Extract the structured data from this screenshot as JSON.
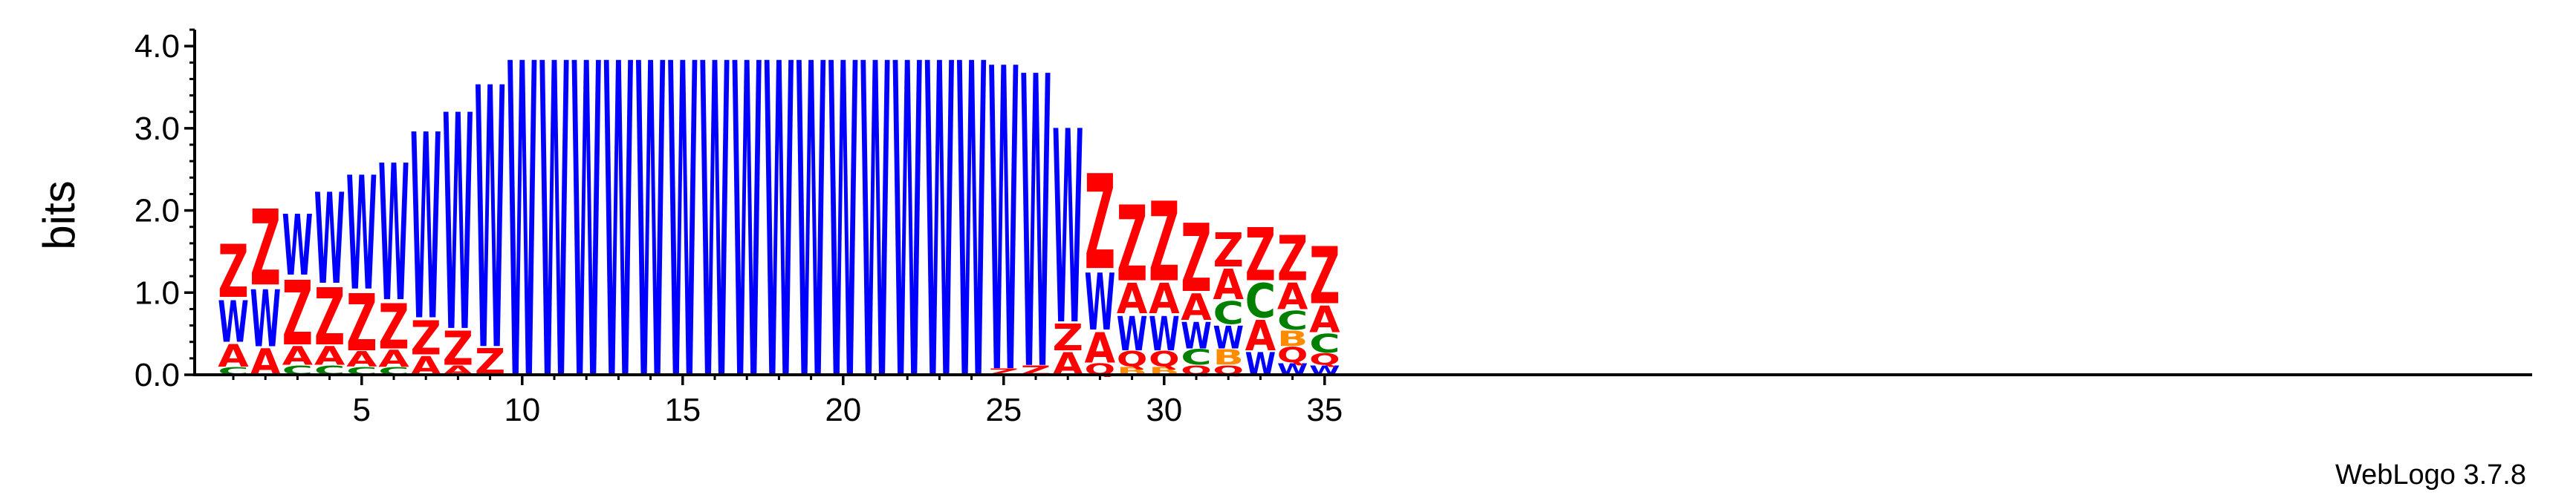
{
  "chart_data": {
    "type": "sequence_logo",
    "ylabel": "bits",
    "ylim": [
      0,
      4.2
    ],
    "yticks": [
      "0.0",
      "1.0",
      "2.0",
      "3.0",
      "4.0"
    ],
    "xticks": [
      5,
      10,
      15,
      20,
      25,
      30,
      35
    ],
    "num_positions": 35,
    "credit": "WebLogo 3.7.8",
    "colors": {
      "Z": "#ff0000",
      "W": "#0000ff",
      "A": "#ff0000",
      "C": "#008000",
      "B": "#ff8c00",
      "Q": "#ff0000",
      "G": "#ff8c00"
    },
    "positions": [
      {
        "pos": 1,
        "stack": [
          [
            "C",
            0.1
          ],
          [
            "A",
            0.3
          ],
          [
            "W",
            0.55
          ],
          [
            "Z",
            0.7
          ]
        ]
      },
      {
        "pos": 2,
        "stack": [
          [
            "A",
            0.35
          ],
          [
            "W",
            0.75
          ],
          [
            "Z",
            1.0
          ]
        ]
      },
      {
        "pos": 3,
        "stack": [
          [
            "C",
            0.12
          ],
          [
            "A",
            0.25
          ],
          [
            "Z",
            0.85
          ],
          [
            "W",
            0.8
          ]
        ]
      },
      {
        "pos": 4,
        "stack": [
          [
            "C",
            0.12
          ],
          [
            "A",
            0.25
          ],
          [
            "Z",
            0.75
          ],
          [
            "W",
            1.2
          ]
        ]
      },
      {
        "pos": 5,
        "stack": [
          [
            "C",
            0.1
          ],
          [
            "A",
            0.2
          ],
          [
            "Z",
            0.75
          ],
          [
            "W",
            1.5
          ]
        ]
      },
      {
        "pos": 6,
        "stack": [
          [
            "C",
            0.1
          ],
          [
            "A",
            0.22
          ],
          [
            "Z",
            0.6
          ],
          [
            "W",
            1.8
          ]
        ]
      },
      {
        "pos": 7,
        "stack": [
          [
            "A",
            0.25
          ],
          [
            "Z",
            0.45
          ],
          [
            "W",
            2.45
          ]
        ]
      },
      {
        "pos": 8,
        "stack": [
          [
            "A",
            0.12
          ],
          [
            "Z",
            0.45
          ],
          [
            "W",
            2.85
          ]
        ]
      },
      {
        "pos": 9,
        "stack": [
          [
            "Z",
            0.35
          ],
          [
            "W",
            3.45
          ]
        ]
      },
      {
        "pos": 10,
        "stack": [
          [
            "W",
            4.15
          ]
        ]
      },
      {
        "pos": 11,
        "stack": [
          [
            "W",
            4.15
          ]
        ]
      },
      {
        "pos": 12,
        "stack": [
          [
            "W",
            4.15
          ]
        ]
      },
      {
        "pos": 13,
        "stack": [
          [
            "W",
            4.15
          ]
        ]
      },
      {
        "pos": 14,
        "stack": [
          [
            "W",
            4.15
          ]
        ]
      },
      {
        "pos": 15,
        "stack": [
          [
            "W",
            4.15
          ]
        ]
      },
      {
        "pos": 16,
        "stack": [
          [
            "W",
            4.15
          ]
        ]
      },
      {
        "pos": 17,
        "stack": [
          [
            "W",
            4.15
          ]
        ]
      },
      {
        "pos": 18,
        "stack": [
          [
            "W",
            4.15
          ]
        ]
      },
      {
        "pos": 19,
        "stack": [
          [
            "W",
            4.15
          ]
        ]
      },
      {
        "pos": 20,
        "stack": [
          [
            "W",
            4.15
          ]
        ]
      },
      {
        "pos": 21,
        "stack": [
          [
            "W",
            4.15
          ]
        ]
      },
      {
        "pos": 22,
        "stack": [
          [
            "W",
            4.15
          ]
        ]
      },
      {
        "pos": 23,
        "stack": [
          [
            "W",
            4.15
          ]
        ]
      },
      {
        "pos": 24,
        "stack": [
          [
            "W",
            4.15
          ]
        ]
      },
      {
        "pos": 25,
        "stack": [
          [
            "Z",
            0.08
          ],
          [
            "W",
            4.0
          ]
        ]
      },
      {
        "pos": 26,
        "stack": [
          [
            "Z",
            0.12
          ],
          [
            "W",
            3.85
          ]
        ]
      },
      {
        "pos": 27,
        "stack": [
          [
            "A",
            0.3
          ],
          [
            "Z",
            0.35
          ],
          [
            "W",
            2.55
          ]
        ]
      },
      {
        "pos": 28,
        "stack": [
          [
            "Q",
            0.15
          ],
          [
            "A",
            0.4
          ],
          [
            "W",
            0.75
          ],
          [
            "Z",
            1.25
          ]
        ]
      },
      {
        "pos": 29,
        "stack": [
          [
            "B",
            0.1
          ],
          [
            "Q",
            0.2
          ],
          [
            "W",
            0.45
          ],
          [
            "A",
            0.4
          ],
          [
            "Z",
            1.0
          ]
        ]
      },
      {
        "pos": 30,
        "stack": [
          [
            "B",
            0.1
          ],
          [
            "Q",
            0.2
          ],
          [
            "W",
            0.45
          ],
          [
            "A",
            0.4
          ],
          [
            "Z",
            1.05
          ]
        ]
      },
      {
        "pos": 31,
        "stack": [
          [
            "Q",
            0.12
          ],
          [
            "C",
            0.2
          ],
          [
            "W",
            0.35
          ],
          [
            "A",
            0.35
          ],
          [
            "Z",
            0.9
          ]
        ]
      },
      {
        "pos": 32,
        "stack": [
          [
            "Q",
            0.12
          ],
          [
            "B",
            0.2
          ],
          [
            "W",
            0.3
          ],
          [
            "C",
            0.3
          ],
          [
            "A",
            0.4
          ],
          [
            "Z",
            0.45
          ]
        ]
      },
      {
        "pos": 33,
        "stack": [
          [
            "W",
            0.3
          ],
          [
            "A",
            0.4
          ],
          [
            "C",
            0.45
          ],
          [
            "Z",
            0.7
          ]
        ]
      },
      {
        "pos": 34,
        "stack": [
          [
            "W",
            0.15
          ],
          [
            "Q",
            0.2
          ],
          [
            "B",
            0.2
          ],
          [
            "C",
            0.25
          ],
          [
            "A",
            0.35
          ],
          [
            "Z",
            0.6
          ]
        ]
      },
      {
        "pos": 35,
        "stack": [
          [
            "W",
            0.12
          ],
          [
            "Q",
            0.15
          ],
          [
            "C",
            0.25
          ],
          [
            "A",
            0.35
          ],
          [
            "Z",
            0.75
          ]
        ]
      }
    ]
  }
}
